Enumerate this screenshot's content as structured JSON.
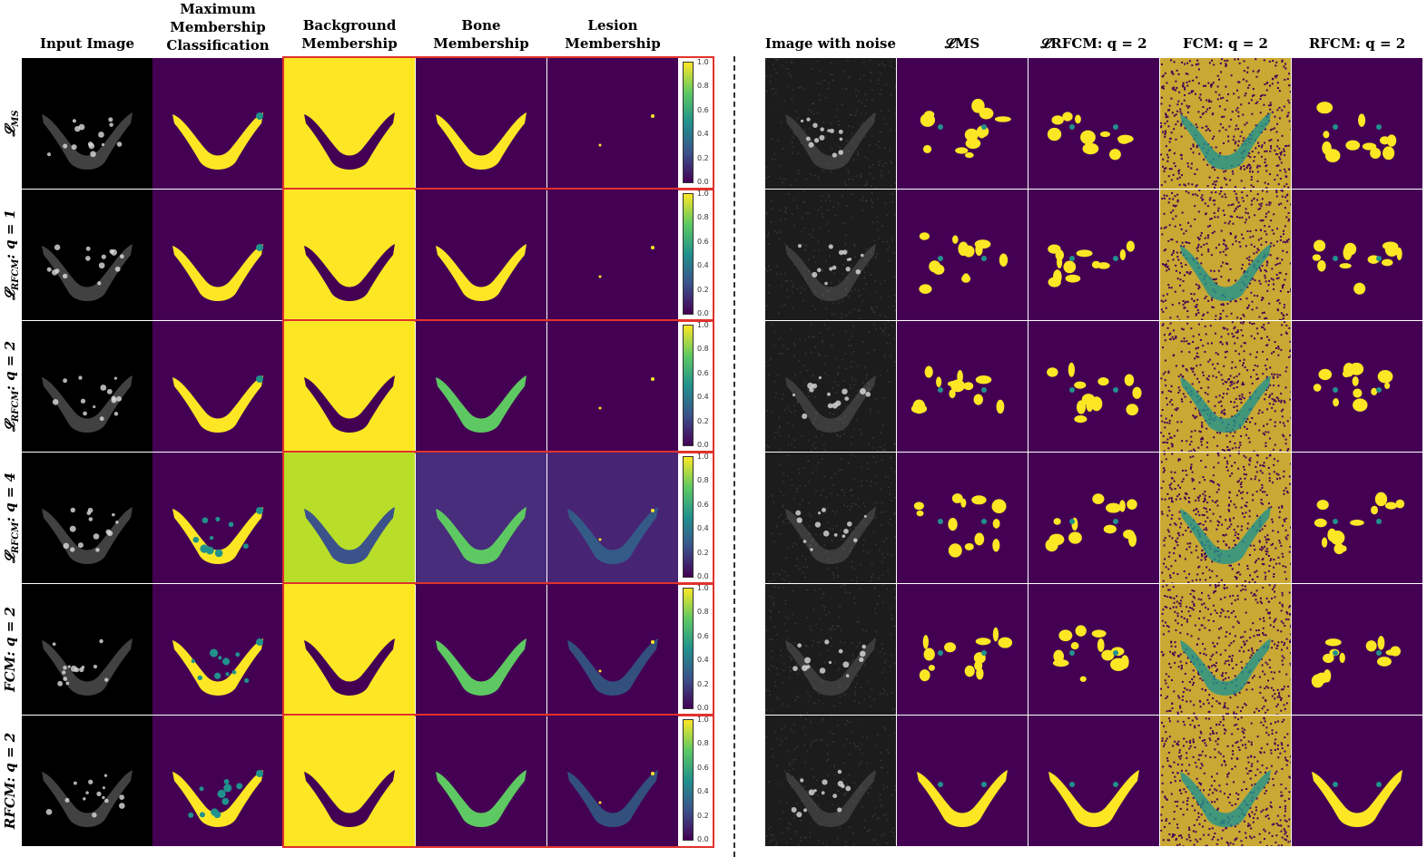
{
  "headers_left": [
    "Input Image",
    "Maximum\nMembership\nClassification",
    "Background\nMembership",
    "Bone\nMembership",
    "Lesion\nMembership"
  ],
  "headers_right": [
    "Image with noise",
    "𝓛MS",
    "𝓛RFCM: q = 2",
    "FCM: q = 2",
    "RFCM: q = 2"
  ],
  "row_labels": [
    {
      "main": "𝓛",
      "sub": "MS",
      "rest": ""
    },
    {
      "main": "𝓛",
      "sub": "RFCM",
      "rest": ": q = 1"
    },
    {
      "main": "𝓛",
      "sub": "RFCM",
      "rest": ": q = 2"
    },
    {
      "main": "𝓛",
      "sub": "RFCM",
      "rest": ": q = 4"
    },
    {
      "main": "FCM",
      "sub": "",
      "rest": ": q = 2"
    },
    {
      "main": "RFCM",
      "sub": "",
      "rest": ": q = 2"
    }
  ],
  "colorbar_ticks": [
    "1.0",
    "0.8",
    "0.6",
    "0.4",
    "0.2",
    "0.0"
  ],
  "colors": {
    "viridis_dark": "#440154",
    "viridis_teal": "#21918c",
    "viridis_yellow": "#fde725",
    "highlight_border": "#e0322c"
  }
}
